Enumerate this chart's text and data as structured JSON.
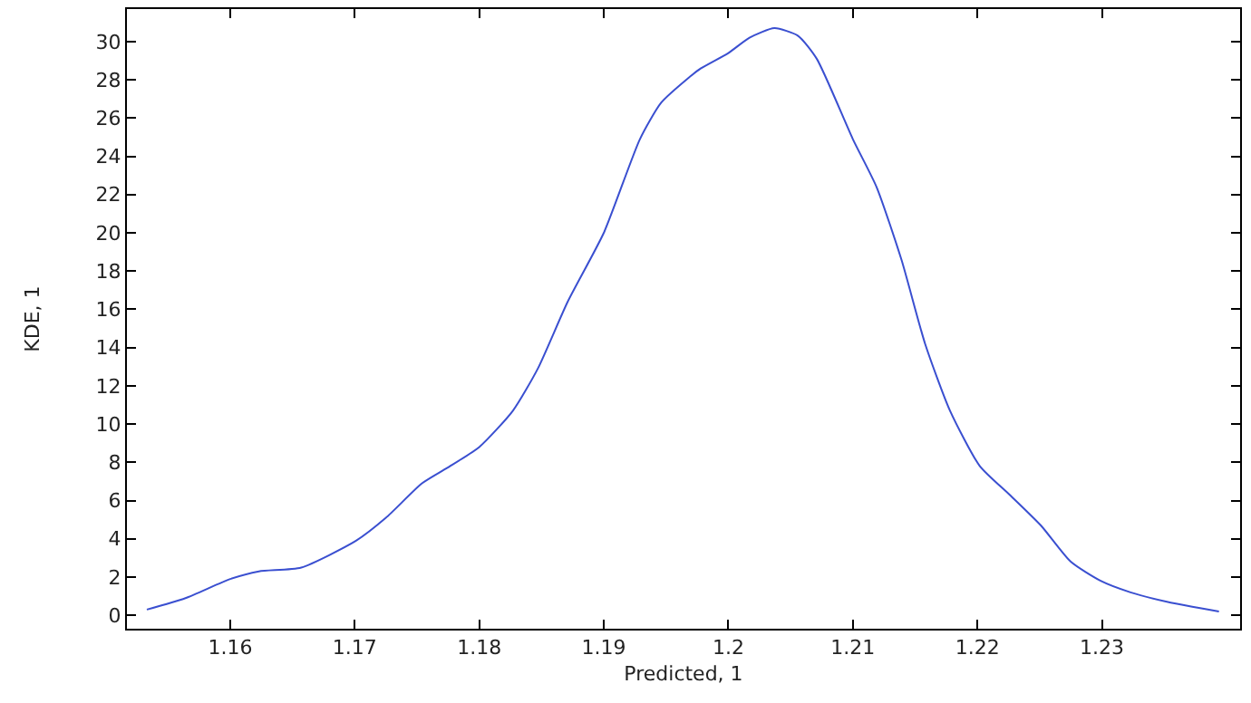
{
  "chart_data": {
    "type": "line",
    "xlabel": "Predicted, 1",
    "ylabel": "KDE, 1",
    "xlim": [
      1.1517,
      1.2411
    ],
    "xticks": [
      1.16,
      1.17,
      1.18,
      1.19,
      1.2,
      1.21,
      1.22,
      1.23
    ],
    "ylim": [
      -0.7,
      31.7
    ],
    "yticks": [
      0,
      2,
      4,
      6,
      8,
      10,
      12,
      14,
      16,
      18,
      20,
      22,
      24,
      26,
      28,
      30
    ],
    "marker": "none",
    "line_style": "solid",
    "series": [
      {
        "color": "#3a4fd0",
        "x": [
          1.1533,
          1.1564,
          1.16,
          1.1623,
          1.1657,
          1.1701,
          1.1725,
          1.1754,
          1.1774,
          1.18,
          1.1827,
          1.1847,
          1.1871,
          1.19,
          1.1929,
          1.1946,
          1.1968,
          1.1978,
          1.2,
          1.2017,
          1.2037,
          1.2056,
          1.2071,
          1.21,
          1.2119,
          1.2139,
          1.2158,
          1.2178,
          1.2202,
          1.2226,
          1.2251,
          1.2275,
          1.2299,
          1.2323,
          1.2353,
          1.2394
        ],
        "values": [
          0.3,
          0.9,
          1.9,
          2.3,
          2.5,
          3.9,
          5.1,
          6.9,
          7.7,
          8.8,
          10.7,
          12.9,
          16.4,
          20.0,
          24.9,
          26.8,
          28.1,
          28.6,
          29.4,
          30.2,
          30.7,
          30.3,
          29.1,
          24.9,
          22.4,
          18.6,
          14.2,
          10.7,
          7.8,
          6.3,
          4.7,
          2.8,
          1.8,
          1.2,
          0.7,
          0.2
        ]
      }
    ]
  }
}
